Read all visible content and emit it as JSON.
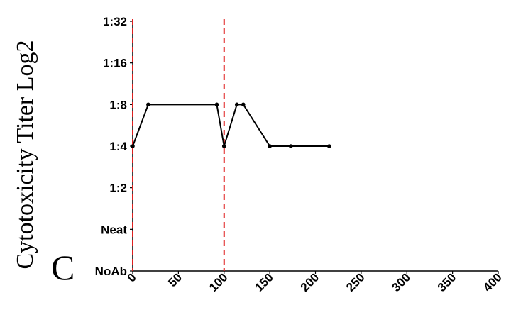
{
  "chart_data": {
    "type": "line",
    "panel_label": "C",
    "ylabel": "Cytotoxicity Titer Log2",
    "xlabel": "",
    "xlim": [
      0,
      400
    ],
    "x_ticks": [
      "0",
      "50",
      "100",
      "150",
      "200",
      "250",
      "300",
      "350",
      "400"
    ],
    "y_ticks": [
      "NoAb",
      "Neat",
      "1:2",
      "1:4",
      "1:8",
      "1:16",
      "1:32"
    ],
    "vlines": [
      0,
      100
    ],
    "series": [
      {
        "x": [
          0,
          17,
          92,
          100,
          114,
          121,
          150,
          173,
          215
        ],
        "y": [
          "1:4",
          "1:8",
          "1:8",
          "1:4",
          "1:8",
          "1:8",
          "1:4",
          "1:4",
          "1:4"
        ]
      }
    ],
    "colors": {
      "line": "#000000",
      "vline": "#e02020"
    },
    "grid": false,
    "legend": "none"
  }
}
